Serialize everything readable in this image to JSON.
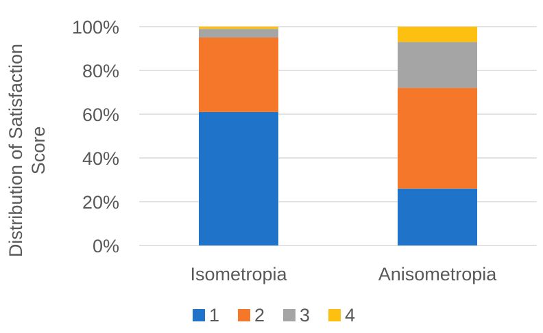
{
  "chart_data": {
    "type": "bar",
    "stacked": true,
    "percent": true,
    "categories": [
      "Isometropia",
      "Anisometropia"
    ],
    "series": [
      {
        "name": "1",
        "values": [
          61,
          26
        ],
        "color": "#1f73c9"
      },
      {
        "name": "2",
        "values": [
          34,
          46
        ],
        "color": "#f5782a"
      },
      {
        "name": "3",
        "values": [
          4,
          21
        ],
        "color": "#a5a5a5"
      },
      {
        "name": "4",
        "values": [
          1,
          7
        ],
        "color": "#fdc010"
      }
    ],
    "ylabel": "Distribution of Satisfaction Score",
    "ylim": [
      0,
      100
    ],
    "yticks": [
      "0%",
      "20%",
      "40%",
      "60%",
      "80%",
      "100%"
    ],
    "grid": true,
    "legend": "bottom"
  }
}
